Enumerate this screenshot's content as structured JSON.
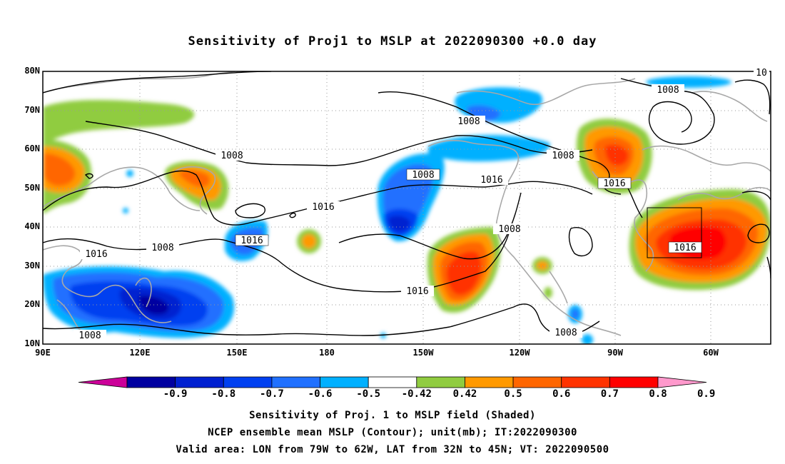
{
  "title": "Sensitivity of Proj1 to MSLP at 2022090300 +0.0 day",
  "lat_labels": [
    "80N",
    "70N",
    "60N",
    "50N",
    "40N",
    "30N",
    "20N",
    "10N"
  ],
  "lon_labels": [
    "90E",
    "120E",
    "150E",
    "180",
    "150W",
    "120W",
    "90W",
    "60W"
  ],
  "contour_labels": [
    "1008",
    "1008",
    "1008",
    "1008",
    "1008",
    "1016",
    "1016",
    "1016",
    "1016",
    "1016",
    "1008",
    "1008",
    "1016",
    "1008",
    "1016",
    "10"
  ],
  "colorbar": {
    "labels": [
      "-0.9",
      "-0.8",
      "-0.7",
      "-0.6",
      "-0.5",
      "-0.42",
      "0.42",
      "0.5",
      "0.6",
      "0.7",
      "0.8",
      "0.9"
    ],
    "colors": [
      "#cc0099",
      "#0000a0",
      "#0020d0",
      "#0040f0",
      "#2070ff",
      "#00b0ff",
      "#ffffff",
      "#90cc40",
      "#ff9900",
      "#ff6600",
      "#ff3300",
      "#ff0000",
      "#ff99cc"
    ]
  },
  "footer": [
    "Sensitivity of Proj. 1 to MSLP field (Shaded)",
    "NCEP ensemble mean MSLP (Contour); unit(mb); IT:2022090300",
    "Valid area: LON from 79W to 62W, LAT from 32N to 45N; VT: 2022090500"
  ]
}
